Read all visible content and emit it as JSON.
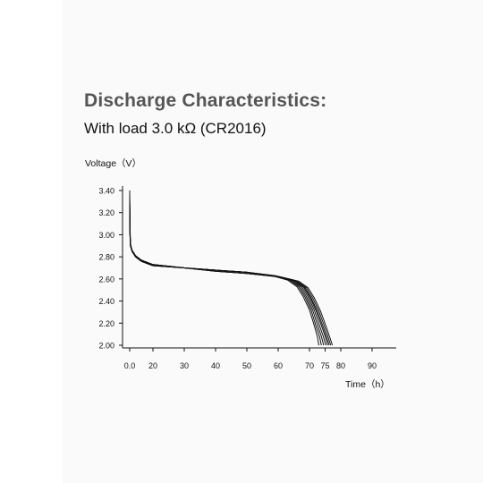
{
  "header": {
    "title": "Discharge Characteristics:",
    "subtitle": "With load 3.0 kΩ (CR2016)"
  },
  "chart_data": {
    "type": "line",
    "title": "Discharge Characteristics:",
    "subtitle": "With load 3.0 kΩ (CR2016)",
    "ylabel": "Voltage（V）",
    "xlabel": "Time（h）",
    "xlim": [
      0,
      90
    ],
    "ylim": [
      2.0,
      3.4
    ],
    "x_ticks": [
      0,
      20,
      30,
      40,
      50,
      60,
      70,
      75,
      80,
      90
    ],
    "x_tick_labels": [
      "0.0",
      "20",
      "30",
      "40",
      "50",
      "60",
      "70",
      "75",
      "80",
      "90"
    ],
    "y_ticks": [
      2.0,
      2.2,
      2.4,
      2.6,
      2.8,
      3.0,
      3.2,
      3.4
    ],
    "y_tick_labels": [
      "2.00",
      "2.20",
      "2.40",
      "2.60",
      "2.80",
      "3.00",
      "3.20",
      "3.40"
    ],
    "grid": false,
    "series": [
      {
        "values": [
          [
            0,
            3.4
          ],
          [
            0.3,
            3.05
          ],
          [
            0.7,
            2.92
          ],
          [
            2,
            2.86
          ],
          [
            5,
            2.81
          ],
          [
            10,
            2.77
          ],
          [
            20,
            2.73
          ],
          [
            30,
            2.7
          ],
          [
            40,
            2.68
          ],
          [
            50,
            2.66
          ],
          [
            58,
            2.63
          ],
          [
            63,
            2.59
          ],
          [
            66,
            2.53
          ],
          [
            68,
            2.44
          ],
          [
            70,
            2.32
          ],
          [
            71.5,
            2.18
          ],
          [
            72.5,
            2.08
          ],
          [
            73,
            2.0
          ]
        ]
      },
      {
        "values": [
          [
            0,
            3.35
          ],
          [
            0.3,
            3.02
          ],
          [
            0.7,
            2.91
          ],
          [
            2,
            2.86
          ],
          [
            5,
            2.81
          ],
          [
            10,
            2.77
          ],
          [
            20,
            2.73
          ],
          [
            30,
            2.7
          ],
          [
            40,
            2.68
          ],
          [
            50,
            2.66
          ],
          [
            58,
            2.63
          ],
          [
            63.5,
            2.59
          ],
          [
            66.5,
            2.53
          ],
          [
            68.5,
            2.44
          ],
          [
            70.5,
            2.32
          ],
          [
            72,
            2.18
          ],
          [
            73.2,
            2.08
          ],
          [
            73.8,
            2.0
          ]
        ]
      },
      {
        "values": [
          [
            0,
            3.3
          ],
          [
            0.3,
            3.0
          ],
          [
            0.7,
            2.9
          ],
          [
            2,
            2.85
          ],
          [
            5,
            2.81
          ],
          [
            10,
            2.77
          ],
          [
            20,
            2.73
          ],
          [
            30,
            2.7
          ],
          [
            40,
            2.68
          ],
          [
            50,
            2.66
          ],
          [
            58,
            2.63
          ],
          [
            64,
            2.59
          ],
          [
            67,
            2.53
          ],
          [
            69,
            2.44
          ],
          [
            71,
            2.32
          ],
          [
            72.6,
            2.18
          ],
          [
            73.8,
            2.08
          ],
          [
            74.5,
            2.0
          ]
        ]
      },
      {
        "values": [
          [
            0,
            3.32
          ],
          [
            0.3,
            3.01
          ],
          [
            0.7,
            2.91
          ],
          [
            2,
            2.86
          ],
          [
            5,
            2.81
          ],
          [
            10,
            2.77
          ],
          [
            20,
            2.73
          ],
          [
            30,
            2.7
          ],
          [
            40,
            2.68
          ],
          [
            50,
            2.66
          ],
          [
            58.5,
            2.63
          ],
          [
            64.5,
            2.59
          ],
          [
            67.5,
            2.53
          ],
          [
            69.5,
            2.44
          ],
          [
            71.5,
            2.32
          ],
          [
            73.2,
            2.18
          ],
          [
            74.4,
            2.08
          ],
          [
            75.2,
            2.0
          ]
        ]
      },
      {
        "values": [
          [
            0,
            3.28
          ],
          [
            0.3,
            3.0
          ],
          [
            0.7,
            2.9
          ],
          [
            2,
            2.85
          ],
          [
            5,
            2.8
          ],
          [
            10,
            2.76
          ],
          [
            20,
            2.72
          ],
          [
            30,
            2.7
          ],
          [
            40,
            2.68
          ],
          [
            50,
            2.66
          ],
          [
            59,
            2.63
          ],
          [
            65,
            2.59
          ],
          [
            68,
            2.53
          ],
          [
            70,
            2.44
          ],
          [
            72,
            2.32
          ],
          [
            73.8,
            2.18
          ],
          [
            75,
            2.08
          ],
          [
            75.8,
            2.0
          ]
        ]
      },
      {
        "values": [
          [
            0,
            3.25
          ],
          [
            0.3,
            2.99
          ],
          [
            0.7,
            2.9
          ],
          [
            2,
            2.85
          ],
          [
            5,
            2.8
          ],
          [
            10,
            2.76
          ],
          [
            20,
            2.72
          ],
          [
            30,
            2.7
          ],
          [
            40,
            2.67
          ],
          [
            50,
            2.65
          ],
          [
            59.5,
            2.62
          ],
          [
            65.5,
            2.58
          ],
          [
            68.5,
            2.52
          ],
          [
            70.5,
            2.43
          ],
          [
            72.5,
            2.31
          ],
          [
            74.3,
            2.17
          ],
          [
            75.5,
            2.07
          ],
          [
            76.3,
            2.0
          ]
        ]
      },
      {
        "values": [
          [
            0,
            3.3
          ],
          [
            0.3,
            3.0
          ],
          [
            0.7,
            2.9
          ],
          [
            2,
            2.85
          ],
          [
            5,
            2.8
          ],
          [
            10,
            2.76
          ],
          [
            20,
            2.72
          ],
          [
            30,
            2.7
          ],
          [
            40,
            2.67
          ],
          [
            50,
            2.65
          ],
          [
            60,
            2.62
          ],
          [
            66,
            2.58
          ],
          [
            69,
            2.52
          ],
          [
            71,
            2.43
          ],
          [
            73,
            2.31
          ],
          [
            74.8,
            2.17
          ],
          [
            76,
            2.07
          ],
          [
            76.8,
            2.0
          ]
        ]
      },
      {
        "values": [
          [
            0,
            3.27
          ],
          [
            0.3,
            2.99
          ],
          [
            0.7,
            2.9
          ],
          [
            2,
            2.85
          ],
          [
            5,
            2.8
          ],
          [
            10,
            2.76
          ],
          [
            20,
            2.72
          ],
          [
            30,
            2.7
          ],
          [
            40,
            2.67
          ],
          [
            50,
            2.65
          ],
          [
            60.5,
            2.62
          ],
          [
            66.5,
            2.58
          ],
          [
            69.5,
            2.52
          ],
          [
            71.5,
            2.43
          ],
          [
            73.5,
            2.31
          ],
          [
            75.3,
            2.17
          ],
          [
            76.5,
            2.07
          ],
          [
            77.3,
            2.0
          ]
        ]
      }
    ]
  }
}
